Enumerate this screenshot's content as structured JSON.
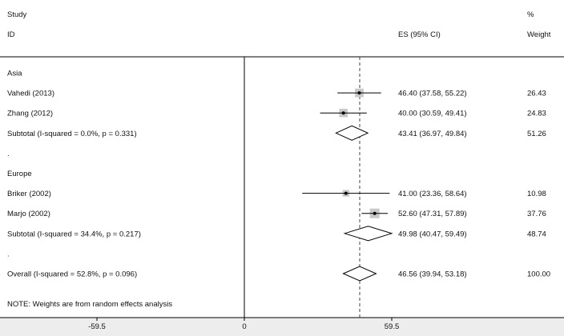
{
  "header": {
    "study_label": "Study",
    "id_label": "ID",
    "es_label": "ES (95% CI)",
    "pct_label": "%",
    "weight_label": "Weight"
  },
  "note": "NOTE: Weights are from random effects analysis",
  "colors": {
    "marker_fill": "#c8c8c8",
    "line": "#000000",
    "axis_band": "#ededed",
    "dashed_line": "#444444"
  },
  "chart_data": {
    "type": "forest",
    "xlim": [
      -59.5,
      100
    ],
    "x_ticks": [
      -59.5,
      0,
      59.5
    ],
    "x_tick_labels": [
      "-59.5",
      "0",
      "59.5"
    ],
    "reference_line": 0,
    "overall_line": 46.56,
    "rows": [
      {
        "kind": "group",
        "label": "Asia"
      },
      {
        "kind": "study",
        "label": "Vahedi (2013)",
        "es": 46.4,
        "lo": 37.58,
        "hi": 55.22,
        "ci_text": "46.40 (37.58, 55.22)",
        "weight": "26.43"
      },
      {
        "kind": "study",
        "label": "Zhang (2012)",
        "es": 40.0,
        "lo": 30.59,
        "hi": 49.41,
        "ci_text": "40.00 (30.59, 49.41)",
        "weight": "24.83"
      },
      {
        "kind": "subtotal",
        "label": "Subtotal  (I-squared = 0.0%, p = 0.331)",
        "es": 43.41,
        "lo": 36.97,
        "hi": 49.84,
        "ci_text": "43.41 (36.97, 49.84)",
        "weight": "51.26"
      },
      {
        "kind": "spacer",
        "label": "."
      },
      {
        "kind": "group",
        "label": "Europe"
      },
      {
        "kind": "study",
        "label": "Briker (2002)",
        "es": 41.0,
        "lo": 23.36,
        "hi": 58.64,
        "ci_text": "41.00 (23.36, 58.64)",
        "weight": "10.98"
      },
      {
        "kind": "study",
        "label": "Marjo (2002)",
        "es": 52.6,
        "lo": 47.31,
        "hi": 57.89,
        "ci_text": "52.60 (47.31, 57.89)",
        "weight": "37.76"
      },
      {
        "kind": "subtotal",
        "label": "Subtotal  (I-squared = 34.4%, p = 0.217)",
        "es": 49.98,
        "lo": 40.47,
        "hi": 59.49,
        "ci_text": "49.98 (40.47, 59.49)",
        "weight": "48.74"
      },
      {
        "kind": "spacer",
        "label": "."
      },
      {
        "kind": "subtotal",
        "label": "Overall  (I-squared = 52.8%, p = 0.096)",
        "es": 46.56,
        "lo": 39.94,
        "hi": 53.18,
        "ci_text": "46.56 (39.94, 53.18)",
        "weight": "100.00"
      }
    ]
  }
}
